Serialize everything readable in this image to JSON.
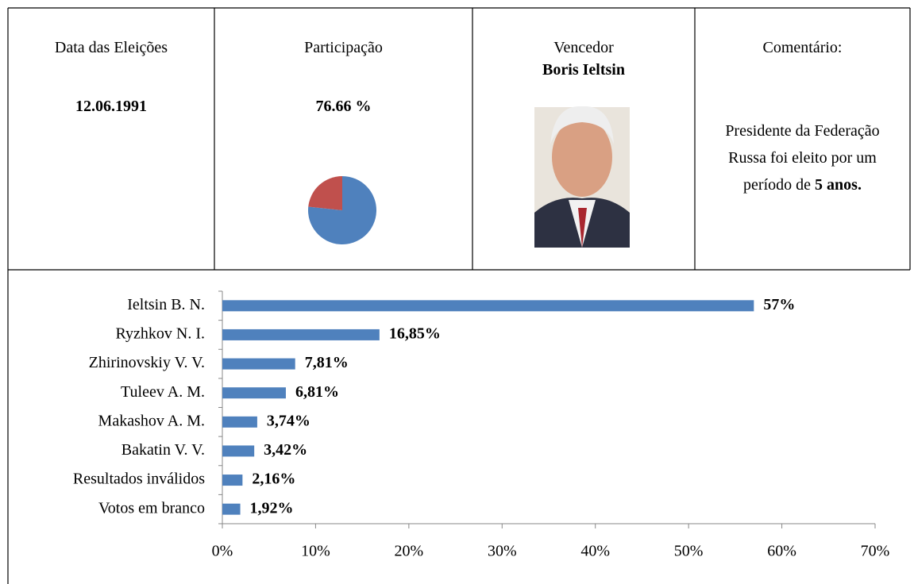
{
  "election_date": {
    "label": "Data das Eleições",
    "value": "12.06.1991"
  },
  "participation": {
    "label": "Participação",
    "value": "76.66 %"
  },
  "winner": {
    "label": "Vencedor",
    "name": "Boris Ieltsin"
  },
  "comment": {
    "label": "Comentário:",
    "text": "Presidente da Federação Russa foi eleito por um período de",
    "highlight": "5 anos."
  },
  "chart_data": [
    {
      "type": "pie",
      "values": [
        76.66,
        23.34
      ],
      "colors": [
        "#4f81bd",
        "#c0504d"
      ]
    },
    {
      "type": "bar",
      "orientation": "horizontal",
      "categories": [
        "Ieltsin B. N.",
        "Ryzhkov N. I.",
        "Zhirinovskiy V. V.",
        "Tuleev A. M.",
        "Makashov A. M.",
        "Bakatin V. V.",
        "Resultados inválidos",
        "Votos em branco"
      ],
      "values": [
        57,
        16.85,
        7.81,
        6.81,
        3.74,
        3.42,
        2.16,
        1.92
      ],
      "value_labels": [
        "57%",
        "16,85%",
        "7,81%",
        "6,81%",
        "3,74%",
        "3,42%",
        "2,16%",
        "1,92%"
      ],
      "color": "#4f81bd",
      "xlim": [
        0,
        70
      ],
      "xticks": [
        {
          "value": 0,
          "label": "0%"
        },
        {
          "value": 10,
          "label": "10%"
        },
        {
          "value": 20,
          "label": "20%"
        },
        {
          "value": 30,
          "label": "30%"
        },
        {
          "value": 40,
          "label": "40%"
        },
        {
          "value": 50,
          "label": "50%"
        },
        {
          "value": 60,
          "label": "60%"
        },
        {
          "value": 70,
          "label": "70%"
        }
      ],
      "grid": false
    }
  ]
}
